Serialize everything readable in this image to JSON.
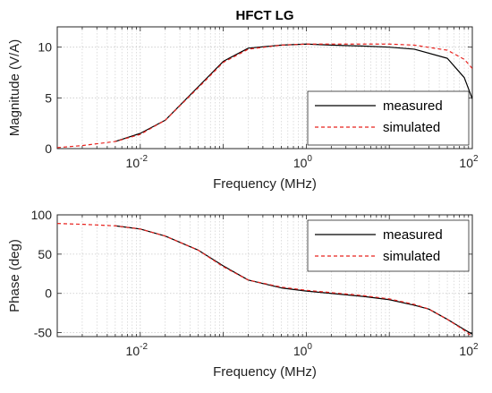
{
  "chart_data": [
    {
      "type": "line",
      "title": "HFCT LG",
      "xlabel": "Frequency (MHz)",
      "ylabel": "Magnitude (V/A)",
      "xscale": "log",
      "xlim": [
        0.001,
        100
      ],
      "ylim": [
        0,
        12
      ],
      "xticks": [
        {
          "value": 0.01,
          "base": "10",
          "exp": "-2"
        },
        {
          "value": 1,
          "base": "10",
          "exp": "0"
        },
        {
          "value": 100,
          "base": "10",
          "exp": "2"
        }
      ],
      "yticks": [
        {
          "value": 0,
          "label": "0"
        },
        {
          "value": 5,
          "label": "5"
        },
        {
          "value": 10,
          "label": "10"
        }
      ],
      "grid": true,
      "legend_position": "bottom-right",
      "series": [
        {
          "name": "measured",
          "color": "#000000",
          "style": "solid",
          "x": [
            0.005,
            0.01,
            0.02,
            0.05,
            0.1,
            0.2,
            0.5,
            1,
            2,
            5,
            10,
            20,
            50,
            80,
            100
          ],
          "y": [
            0.7,
            1.5,
            2.8,
            6.1,
            8.6,
            9.9,
            10.2,
            10.3,
            10.2,
            10.1,
            10.0,
            9.8,
            8.9,
            7.0,
            4.9
          ]
        },
        {
          "name": "simulated",
          "color": "#e8231f",
          "style": "dashed",
          "x": [
            0.001,
            0.002,
            0.005,
            0.01,
            0.02,
            0.05,
            0.1,
            0.2,
            0.5,
            1,
            2,
            5,
            10,
            20,
            50,
            80,
            100
          ],
          "y": [
            0.1,
            0.3,
            0.7,
            1.4,
            2.8,
            6.0,
            8.5,
            9.8,
            10.2,
            10.3,
            10.3,
            10.3,
            10.3,
            10.2,
            9.7,
            8.8,
            7.9
          ]
        }
      ]
    },
    {
      "type": "line",
      "title": "",
      "xlabel": "Frequency (MHz)",
      "ylabel": "Phase (deg)",
      "xscale": "log",
      "xlim": [
        0.001,
        100
      ],
      "ylim": [
        -55,
        100
      ],
      "xticks": [
        {
          "value": 0.01,
          "base": "10",
          "exp": "-2"
        },
        {
          "value": 1,
          "base": "10",
          "exp": "0"
        },
        {
          "value": 100,
          "base": "10",
          "exp": "2"
        }
      ],
      "yticks": [
        {
          "value": -50,
          "label": "-50"
        },
        {
          "value": 0,
          "label": "0"
        },
        {
          "value": 50,
          "label": "50"
        },
        {
          "value": 100,
          "label": "100"
        }
      ],
      "grid": true,
      "legend_position": "top-right",
      "series": [
        {
          "name": "measured",
          "color": "#000000",
          "style": "solid",
          "x": [
            0.005,
            0.01,
            0.02,
            0.05,
            0.1,
            0.2,
            0.5,
            1,
            2,
            5,
            10,
            20,
            30,
            50,
            80,
            100
          ],
          "y": [
            86,
            82,
            73,
            55,
            35,
            17,
            7,
            3,
            0,
            -4,
            -8,
            -15,
            -20,
            -33,
            -46,
            -52
          ]
        },
        {
          "name": "simulated",
          "color": "#e8231f",
          "style": "dashed",
          "x": [
            0.001,
            0.002,
            0.005,
            0.01,
            0.02,
            0.05,
            0.1,
            0.2,
            0.5,
            1,
            2,
            5,
            10,
            20,
            30,
            50,
            80,
            100
          ],
          "y": [
            89,
            88,
            86,
            82,
            73,
            55,
            34,
            17,
            8,
            4,
            1,
            -3,
            -7,
            -14,
            -20,
            -33,
            -47,
            -55
          ]
        }
      ]
    }
  ]
}
